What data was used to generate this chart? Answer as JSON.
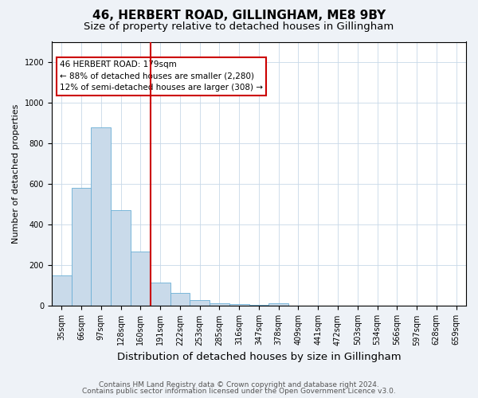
{
  "title1": "46, HERBERT ROAD, GILLINGHAM, ME8 9BY",
  "title2": "Size of property relative to detached houses in Gillingham",
  "xlabel": "Distribution of detached houses by size in Gillingham",
  "ylabel": "Number of detached properties",
  "categories": [
    "35sqm",
    "66sqm",
    "97sqm",
    "128sqm",
    "160sqm",
    "191sqm",
    "222sqm",
    "253sqm",
    "285sqm",
    "316sqm",
    "347sqm",
    "378sqm",
    "409sqm",
    "441sqm",
    "472sqm",
    "503sqm",
    "534sqm",
    "566sqm",
    "597sqm",
    "628sqm",
    "659sqm"
  ],
  "values": [
    150,
    580,
    880,
    470,
    270,
    115,
    65,
    30,
    13,
    8,
    5,
    12,
    0,
    0,
    0,
    0,
    0,
    0,
    0,
    0,
    0
  ],
  "bar_color": "#c9daea",
  "bar_edge_color": "#6aaed6",
  "vline_color": "#cc0000",
  "annotation_line1": "46 HERBERT ROAD: 179sqm",
  "annotation_line2": "← 88% of detached houses are smaller (2,280)",
  "annotation_line3": "12% of semi-detached houses are larger (308) →",
  "annotation_box_color": "white",
  "annotation_box_edge": "#cc0000",
  "ylim": [
    0,
    1300
  ],
  "yticks": [
    0,
    200,
    400,
    600,
    800,
    1000,
    1200
  ],
  "footer1": "Contains HM Land Registry data © Crown copyright and database right 2024.",
  "footer2": "Contains public sector information licensed under the Open Government Licence v3.0.",
  "bg_color": "#eef2f7",
  "plot_bg_color": "#ffffff",
  "title1_fontsize": 11,
  "title2_fontsize": 9.5,
  "xlabel_fontsize": 9.5,
  "ylabel_fontsize": 8,
  "tick_fontsize": 7,
  "footer_fontsize": 6.5,
  "annotation_fontsize": 7.5,
  "grid_color": "#c8d8e8"
}
